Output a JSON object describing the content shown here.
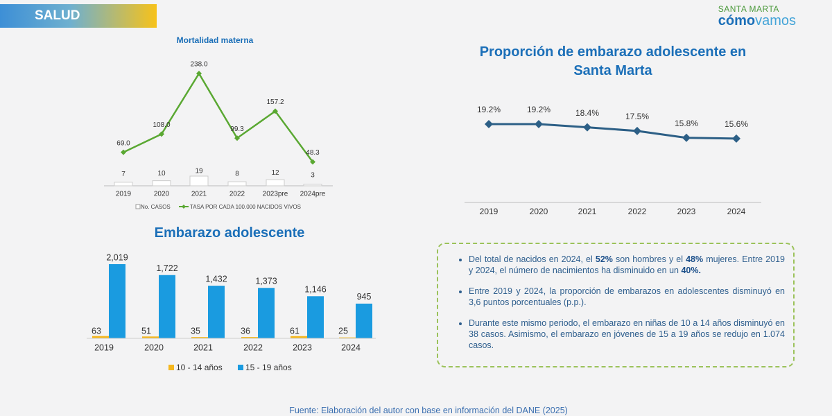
{
  "header": {
    "section": "SALUD",
    "logo_top": "SANTA MARTA",
    "logo_a": "cómo",
    "logo_b": "vamos"
  },
  "chart_data": [
    {
      "type": "combo",
      "title": "Mortalidad materna",
      "categories": [
        "2019",
        "2020",
        "2021",
        "2022",
        "2023pre",
        "2024pre"
      ],
      "series": [
        {
          "name": "No. CASOS",
          "kind": "bar",
          "color": "#ffffff",
          "values": [
            7,
            10,
            19,
            8,
            12,
            3
          ]
        },
        {
          "name": "TASA POR CADA 100.000 NACIDOS VIVOS",
          "kind": "line",
          "color": "#5aa832",
          "values": [
            69.0,
            108.0,
            238.0,
            99.3,
            157.2,
            48.3
          ],
          "value_labels": [
            "69.0",
            "108.0",
            "238.0",
            "99.3",
            "157.2",
            "48.3"
          ]
        }
      ]
    },
    {
      "type": "line",
      "title": "Proporción de embarazo adolescente en Santa Marta",
      "categories": [
        "2019",
        "2020",
        "2021",
        "2022",
        "2023",
        "2024"
      ],
      "series": [
        {
          "color": "#2c5f86",
          "values": [
            19.2,
            19.2,
            18.4,
            17.5,
            15.8,
            15.6
          ],
          "value_labels": [
            "19.2%",
            "19.2%",
            "18.4%",
            "17.5%",
            "15.8%",
            "15.6%"
          ]
        }
      ]
    },
    {
      "type": "bar",
      "title": "Embarazo adolescente",
      "categories": [
        "2019",
        "2020",
        "2021",
        "2022",
        "2023",
        "2024"
      ],
      "series": [
        {
          "name": "10 - 14 años",
          "color": "#f5b71e",
          "values": [
            63,
            51,
            35,
            36,
            61,
            25
          ]
        },
        {
          "name": "15 - 19 años",
          "color": "#1a9be0",
          "values": [
            2019,
            1722,
            1432,
            1373,
            1146,
            945
          ],
          "value_labels": [
            "2,019",
            "1,722",
            "1,432",
            "1,373",
            "1,146",
            "945"
          ]
        }
      ]
    }
  ],
  "notes": [
    [
      "Del total de nacidos en 2024, el ",
      "52%",
      " son hombres y el ",
      "48%",
      " mujeres. Entre 2019 y 2024, el número de nacimientos ha disminuido en un ",
      "40%."
    ],
    [
      "Entre 2019 y 2024, la proporción de embarazos en adolescentes disminuyó en 3,6 puntos porcentuales (p.p.)."
    ],
    [
      "Durante este mismo periodo, el embarazo en niñas de 10 a 14 años disminuyó en 38 casos. Asimismo, el embarazo en jóvenes de 15 a 19 años se redujo en 1.074 casos."
    ]
  ],
  "source": "Fuente: Elaboración del autor con base en información del DANE (2025)"
}
